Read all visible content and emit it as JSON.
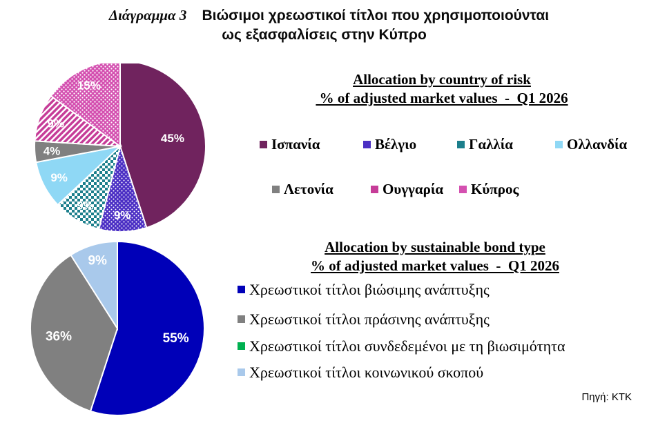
{
  "title": {
    "prefix": "Διάγραμμα 3",
    "line1": "Βιώσιμοι χρεωστικοί τίτλοι που χρησιμοποιούνται",
    "line2": "ως εξασφαλίσεις στην Κύπρο"
  },
  "source": "Πηγή: ΚΤΚ",
  "chart_data": [
    {
      "type": "pie",
      "title": "Allocation by country of risk",
      "subtitle": " % of adjusted market values  -  Q1 2026",
      "legend_placement": "right",
      "slices": [
        {
          "label": "Ισπανία",
          "value": 45,
          "value_label": "45%",
          "color": "#70235e",
          "pattern": "solid"
        },
        {
          "label": "Βέλγιο",
          "value": 9,
          "value_label": "9%",
          "color": "#4b2fc4",
          "pattern": "dots"
        },
        {
          "label": "Γαλλία",
          "value": 9,
          "value_label": "9%",
          "color": "#1c7f8c",
          "pattern": "checker"
        },
        {
          "label": "Ολλανδία",
          "value": 9,
          "value_label": "9%",
          "color": "#8fd8f5",
          "pattern": "solid"
        },
        {
          "label": "Λετονία",
          "value": 4,
          "value_label": "4%",
          "color": "#808080",
          "pattern": "solid"
        },
        {
          "label": "Ουγγαρία",
          "value": 9,
          "value_label": "9%",
          "color": "#c63c98",
          "pattern": "diagonal"
        },
        {
          "label": "Κύπρος",
          "value": 15,
          "value_label": "15%",
          "color": "#d450b0",
          "pattern": "dots"
        }
      ]
    },
    {
      "type": "pie",
      "title": "Allocation by sustainable bond type",
      "subtitle": "% of adjusted market values  -  Q1 2026",
      "legend_placement": "right",
      "slices": [
        {
          "label": "Χρεωστικοί τίτλοι βιώσιμης ανάπτυξης",
          "value": 55,
          "value_label": "55%",
          "color": "#0000b8"
        },
        {
          "label": "Χρεωστικοί τίτλοι πράσινης ανάπτυξης",
          "value": 36,
          "value_label": "36%",
          "color": "#808080"
        },
        {
          "label": "Χρεωστικοί τίτλοι συνδεδεμένοι με τη βιωσιμότητα",
          "value": 0,
          "value_label": "",
          "color": "#00b050"
        },
        {
          "label": "Χρεωστικοί τίτλοι κοινωνικού σκοπού",
          "value": 9,
          "value_label": "9%",
          "color": "#a9c9eb"
        }
      ]
    }
  ]
}
